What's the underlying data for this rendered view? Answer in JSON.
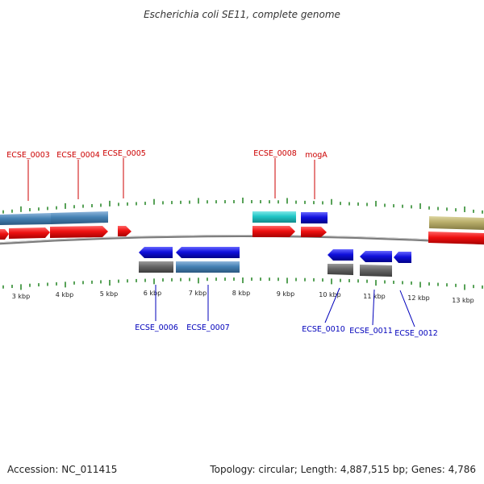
{
  "title": "Escherichia coli SE11, complete genome",
  "footer": {
    "accession": "Accession: NC_011415",
    "summary": "Topology: circular; Length: 4,887,515 bp; Genes: 4,786"
  },
  "colors": {
    "top_label": "#cc0000",
    "bottom_label": "#0000bb",
    "tick": "#2e8b2e",
    "backbone": "#888888",
    "cds_forward": "#ee1111",
    "cds_reverse": "#1111dd",
    "gene_blue": "#4682b4",
    "gene_gray": "#666666",
    "gene_cyan": "#20c6c6",
    "gene_olive": "#b8ad6a"
  },
  "ruler": {
    "labels": [
      "3 kbp",
      "4 kbp",
      "5 kbp",
      "6 kbp",
      "7 kbp",
      "8 kbp",
      "9 kbp",
      "10 kbp",
      "11 kbp",
      "12 kbp",
      "13 kbp"
    ]
  },
  "top_labels": [
    "ECSE_0003",
    "ECSE_0004",
    "ECSE_0005",
    "ECSE_0008",
    "mogA"
  ],
  "bottom_labels": [
    "ECSE_0006",
    "ECSE_0007",
    "ECSE_0010",
    "ECSE_0011",
    "ECSE_0012"
  ]
}
